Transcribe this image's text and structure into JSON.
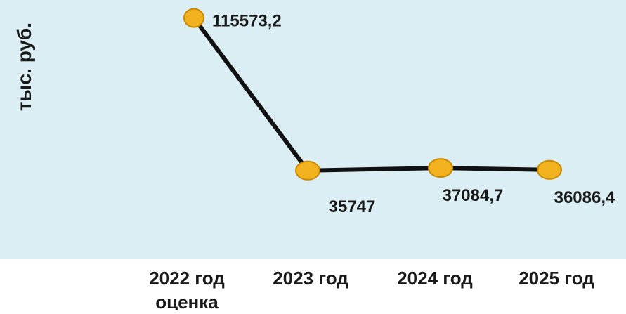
{
  "chart_data": {
    "type": "line",
    "title": "",
    "ylabel": "тыс. руб.",
    "xlabel": "",
    "categories": [
      [
        "2022 год",
        "оценка"
      ],
      [
        "2023 год"
      ],
      [
        "2024 год"
      ],
      [
        "2025 год"
      ]
    ],
    "series": [
      {
        "values": [
          115573.2,
          35747,
          37084.7,
          36086.4
        ],
        "labels": [
          "115573,2",
          "35747",
          "37084,7",
          "36086,4"
        ]
      }
    ],
    "ylim": [
      0,
      125000
    ],
    "grid": false,
    "legend": "none",
    "colors": {
      "plot_background": "#dbeef3",
      "page_background": "#ffffff",
      "line": "#111111",
      "marker_fill": "#f2b21f",
      "marker_stroke": "#c98a00",
      "text": "#1a1a1a"
    }
  }
}
